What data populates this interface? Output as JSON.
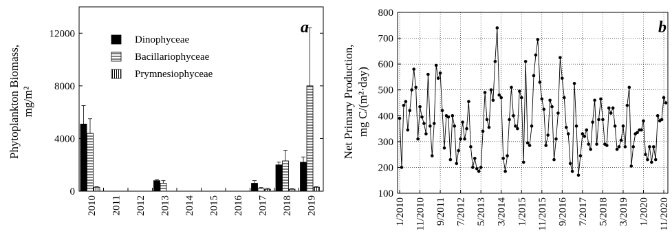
{
  "chart_data": [
    {
      "type": "bar",
      "panel_label": "a",
      "ylabel_line1": "Phytoplankton Biomass,",
      "ylabel_line2": "mg/m²",
      "ylim": [
        0,
        14000
      ],
      "yticks": [
        0,
        4000,
        8000,
        12000
      ],
      "categories": [
        "2010",
        "2011",
        "2012",
        "2013",
        "2014",
        "2015",
        "2016",
        "2017",
        "2018",
        "2019"
      ],
      "legend_position": "top-left",
      "grid": false,
      "series": [
        {
          "name": "Dinophyceae",
          "pattern": "solid",
          "values": [
            5100,
            0,
            0,
            800,
            0,
            0,
            0,
            600,
            2000,
            2200
          ],
          "errors": [
            1400,
            0,
            0,
            80,
            0,
            0,
            0,
            200,
            200,
            400
          ]
        },
        {
          "name": "Bacillariophyceae",
          "pattern": "horizontal-hatch",
          "values": [
            4400,
            0,
            0,
            600,
            0,
            0,
            0,
            200,
            2300,
            8000
          ],
          "errors": [
            1100,
            0,
            0,
            200,
            0,
            0,
            0,
            80,
            800,
            4400
          ]
        },
        {
          "name": "Prymnesiophyceae",
          "pattern": "vertical-hatch",
          "values": [
            300,
            0,
            0,
            0,
            0,
            0,
            0,
            150,
            150,
            300
          ],
          "errors": [
            40,
            0,
            0,
            0,
            0,
            0,
            0,
            60,
            40,
            40
          ]
        }
      ]
    },
    {
      "type": "line",
      "panel_label": "b",
      "ylabel_line1": "Net Primary Production,",
      "ylabel_line2": "mg C/(m²·day)",
      "ylim": [
        100,
        800
      ],
      "yticks": [
        100,
        200,
        300,
        400,
        500,
        600,
        700,
        800
      ],
      "xticklabels": [
        "1/2010",
        "11/2010",
        "9/2011",
        "7/2012",
        "5/2013",
        "3/2014",
        "1/2015",
        "11/2015",
        "9/2016",
        "7/2017",
        "5/2018",
        "3/2019",
        "1/2020",
        "11/2020"
      ],
      "grid": true,
      "marker": "circle",
      "x": [
        "2010-01",
        "2010-02",
        "2010-03",
        "2010-04",
        "2010-05",
        "2010-06",
        "2010-07",
        "2010-08",
        "2010-09",
        "2010-10",
        "2010-11",
        "2010-12",
        "2011-01",
        "2011-02",
        "2011-03",
        "2011-04",
        "2011-05",
        "2011-06",
        "2011-07",
        "2011-08",
        "2011-09",
        "2011-10",
        "2011-11",
        "2011-12",
        "2012-01",
        "2012-02",
        "2012-03",
        "2012-04",
        "2012-05",
        "2012-06",
        "2012-07",
        "2012-08",
        "2012-09",
        "2012-10",
        "2012-11",
        "2012-12",
        "2013-01",
        "2013-02",
        "2013-03",
        "2013-04",
        "2013-05",
        "2013-06",
        "2013-07",
        "2013-08",
        "2013-09",
        "2013-10",
        "2013-11",
        "2013-12",
        "2014-01",
        "2014-02",
        "2014-03",
        "2014-04",
        "2014-05",
        "2014-06",
        "2014-07",
        "2014-08",
        "2014-09",
        "2014-10",
        "2014-11",
        "2014-12",
        "2015-01",
        "2015-02",
        "2015-03",
        "2015-04",
        "2015-05",
        "2015-06",
        "2015-07",
        "2015-08",
        "2015-09",
        "2015-10",
        "2015-11",
        "2015-12",
        "2016-01",
        "2016-02",
        "2016-03",
        "2016-04",
        "2016-05",
        "2016-06",
        "2016-07",
        "2016-08",
        "2016-09",
        "2016-10",
        "2016-11",
        "2016-12",
        "2017-01",
        "2017-02",
        "2017-03",
        "2017-04",
        "2017-05",
        "2017-06",
        "2017-07",
        "2017-08",
        "2017-09",
        "2017-10",
        "2017-11",
        "2017-12",
        "2018-01",
        "2018-02",
        "2018-03",
        "2018-04",
        "2018-05",
        "2018-06",
        "2018-07",
        "2018-08",
        "2018-09",
        "2018-10",
        "2018-11",
        "2018-12",
        "2019-01",
        "2019-02",
        "2019-03",
        "2019-04",
        "2019-05",
        "2019-06",
        "2019-07",
        "2019-08",
        "2019-09",
        "2019-10",
        "2019-11",
        "2019-12",
        "2020-01",
        "2020-02",
        "2020-03",
        "2020-04",
        "2020-05",
        "2020-06",
        "2020-07",
        "2020-08",
        "2020-09",
        "2020-10",
        "2020-11",
        "2020-12"
      ],
      "y": [
        390,
        200,
        440,
        455,
        345,
        420,
        500,
        580,
        510,
        310,
        435,
        395,
        370,
        330,
        560,
        360,
        245,
        370,
        595,
        545,
        565,
        420,
        275,
        400,
        395,
        230,
        400,
        360,
        215,
        265,
        310,
        375,
        310,
        350,
        455,
        280,
        200,
        235,
        195,
        185,
        200,
        340,
        490,
        385,
        355,
        500,
        460,
        610,
        740,
        480,
        470,
        235,
        185,
        245,
        385,
        510,
        400,
        360,
        350,
        495,
        470,
        220,
        610,
        295,
        285,
        360,
        555,
        635,
        695,
        530,
        465,
        425,
        285,
        325,
        460,
        435,
        230,
        310,
        410,
        625,
        545,
        470,
        355,
        330,
        215,
        185,
        525,
        360,
        170,
        245,
        330,
        320,
        345,
        290,
        270,
        375,
        460,
        290,
        385,
        465,
        385,
        290,
        285,
        430,
        410,
        430,
        360,
        270,
        280,
        305,
        360,
        280,
        440,
        510,
        205,
        280,
        330,
        335,
        345,
        345,
        380,
        250,
        230,
        280,
        220,
        280,
        230,
        400,
        380,
        385,
        470,
        450
      ]
    }
  ]
}
